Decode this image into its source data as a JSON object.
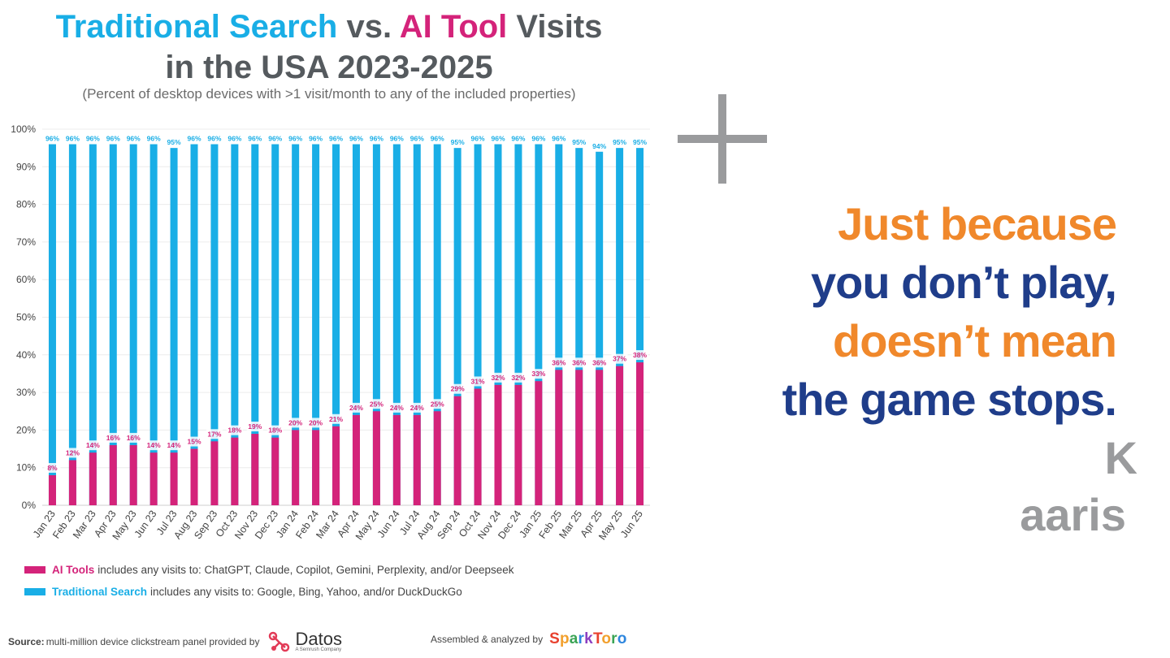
{
  "title": {
    "part1": "Traditional Search",
    "part2": "vs.",
    "part3": "AI Tool",
    "part4": "Visits",
    "line2": "in the USA 2023-2025"
  },
  "subtitle": "(Percent of desktop devices with >1 visit/month to any of the included properties)",
  "chart_data": {
    "type": "bar",
    "title": "Traditional Search vs. AI Tool Visits in the USA 2023-2025",
    "subtitle": "(Percent of desktop devices with >1 visit/month to any of the included properties)",
    "categories": [
      "Jan 23",
      "Feb 23",
      "Mar 23",
      "Apr 23",
      "May 23",
      "Jun 23",
      "Jul 23",
      "Aug 23",
      "Sep 23",
      "Oct 23",
      "Nov 23",
      "Dec 23",
      "Jan 24",
      "Feb 24",
      "Mar 24",
      "Apr 24",
      "May 24",
      "Jun 24",
      "Jul 24",
      "Aug 24",
      "Sep 24",
      "Oct 24",
      "Nov 24",
      "Dec 24",
      "Jan 25",
      "Feb 25",
      "Mar 25",
      "Apr 25",
      "May 25",
      "Jun 25"
    ],
    "series": [
      {
        "name": "Traditional Search",
        "color": "#19aee6",
        "values": [
          96,
          96,
          96,
          96,
          96,
          96,
          95,
          96,
          96,
          96,
          96,
          96,
          96,
          96,
          96,
          96,
          96,
          96,
          96,
          96,
          95,
          96,
          96,
          96,
          96,
          96,
          95,
          94,
          95,
          95
        ]
      },
      {
        "name": "AI Tools",
        "color": "#d4237a",
        "values": [
          8,
          12,
          14,
          16,
          16,
          14,
          14,
          15,
          17,
          18,
          19,
          18,
          20,
          20,
          21,
          24,
          25,
          24,
          24,
          25,
          29,
          31,
          32,
          32,
          33,
          36,
          36,
          36,
          37,
          38
        ]
      }
    ],
    "yticks": [
      "0%",
      "10%",
      "20%",
      "30%",
      "40%",
      "50%",
      "60%",
      "70%",
      "80%",
      "90%",
      "100%"
    ],
    "ylim": [
      0,
      100
    ],
    "grid": true,
    "legend_position": "bottom"
  },
  "legend": [
    {
      "name": "AI Tools",
      "text": "includes any visits to: ChatGPT, Claude, Copilot, Gemini, Perplexity, and/or Deepseek",
      "color": "#d4237a"
    },
    {
      "name": "Traditional Search",
      "text": "includes any visits to: Google, Bing, Yahoo, and/or DuckDuckGo",
      "color": "#19aee6"
    }
  ],
  "footer": {
    "source_label": "Source:",
    "source_text": "multi-million device clickstream panel provided by",
    "datos": "Datos",
    "datos_sub": "A Semrush Company",
    "assembled": "Assembled & analyzed by",
    "sparktoro": "SparkToro"
  },
  "quote": {
    "line1": "Just because",
    "line2": "you don’t play,",
    "line3": "doesn’t mean",
    "line4": "the game stops."
  },
  "signature": {
    "line1": "K",
    "line2": "aaris"
  },
  "icons": {
    "plus": "plus-icon",
    "datos_logo": "datos-logo-icon"
  }
}
